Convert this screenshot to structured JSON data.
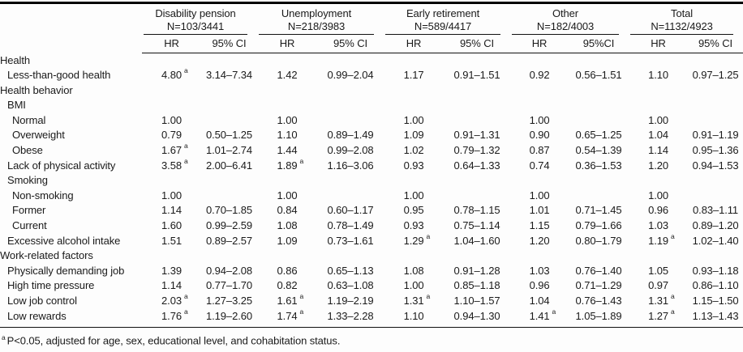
{
  "table": {
    "groups": [
      {
        "name": "Disability pension",
        "n": "N=103/3441",
        "hr": "HR",
        "ci": "95% CI"
      },
      {
        "name": "Unemployment",
        "n": "N=218/3983",
        "hr": "HR",
        "ci": "95% CI"
      },
      {
        "name": "Early retirement",
        "n": "N=589/4417",
        "hr": "HR",
        "ci": "95% CI"
      },
      {
        "name": "Other",
        "n": "N=182/4003",
        "hr": "HR",
        "ci": "95%CI"
      },
      {
        "name": "Total",
        "n": "N=1132/4923",
        "hr": "HR",
        "ci": "95% CI"
      }
    ],
    "rows": [
      {
        "label": "Health",
        "indent": 0,
        "cells": null
      },
      {
        "label": "Less-than-good health",
        "indent": 1,
        "cells": [
          {
            "hr": "4.80",
            "sup": "a",
            "ci": "3.14–7.34"
          },
          {
            "hr": "1.42",
            "ci": "0.99–2.04"
          },
          {
            "hr": "1.17",
            "ci": "0.91–1.51"
          },
          {
            "hr": "0.92",
            "ci": "0.56–1.51"
          },
          {
            "hr": "1.10",
            "ci": "0.97–1.25"
          }
        ]
      },
      {
        "label": "Health behavior",
        "indent": 0,
        "cells": null
      },
      {
        "label": "BMI",
        "indent": 1,
        "cells": null
      },
      {
        "label": "Normal",
        "indent": 2,
        "cells": [
          {
            "hr": "1.00",
            "ci": ""
          },
          {
            "hr": "1.00",
            "ci": ""
          },
          {
            "hr": "1.00",
            "ci": ""
          },
          {
            "hr": "1.00",
            "ci": ""
          },
          {
            "hr": "1.00",
            "ci": ""
          }
        ]
      },
      {
        "label": "Overweight",
        "indent": 2,
        "cells": [
          {
            "hr": "0.79",
            "ci": "0.50–1.25"
          },
          {
            "hr": "1.10",
            "ci": "0.89–1.49"
          },
          {
            "hr": "1.09",
            "ci": "0.91–1.31"
          },
          {
            "hr": "0.90",
            "ci": "0.65–1.25"
          },
          {
            "hr": "1.04",
            "ci": "0.91–1.19"
          }
        ]
      },
      {
        "label": "Obese",
        "indent": 2,
        "cells": [
          {
            "hr": "1.67",
            "sup": "a",
            "ci": "1.01–2.74"
          },
          {
            "hr": "1.44",
            "ci": "0.99–2.08"
          },
          {
            "hr": "1.02",
            "ci": "0.79–1.32"
          },
          {
            "hr": "0.87",
            "ci": "0.54–1.39"
          },
          {
            "hr": "1.14",
            "ci": "0.95–1.36"
          }
        ]
      },
      {
        "label": "Lack of physical activity",
        "indent": 1,
        "cells": [
          {
            "hr": "3.58",
            "sup": "a",
            "ci": "2.00–6.41"
          },
          {
            "hr": "1.89",
            "sup": "a",
            "ci": "1.16–3.06"
          },
          {
            "hr": "0.93",
            "ci": "0.64–1.33"
          },
          {
            "hr": "0.74",
            "ci": "0.36–1.53"
          },
          {
            "hr": "1.20",
            "ci": "0.94–1.53"
          }
        ]
      },
      {
        "label": "Smoking",
        "indent": 1,
        "cells": null
      },
      {
        "label": "Non-smoking",
        "indent": 2,
        "cells": [
          {
            "hr": "1.00",
            "ci": ""
          },
          {
            "hr": "1.00",
            "ci": ""
          },
          {
            "hr": "1.00",
            "ci": ""
          },
          {
            "hr": "1.00",
            "ci": ""
          },
          {
            "hr": "1.00",
            "ci": ""
          }
        ]
      },
      {
        "label": "Former",
        "indent": 2,
        "cells": [
          {
            "hr": "1.14",
            "ci": "0.70–1.85"
          },
          {
            "hr": "0.84",
            "ci": "0.60–1.17"
          },
          {
            "hr": "0.95",
            "ci": "0.78–1.15"
          },
          {
            "hr": "1.01",
            "ci": "0.71–1.45"
          },
          {
            "hr": "0.96",
            "ci": "0.83–1.11"
          }
        ]
      },
      {
        "label": "Current",
        "indent": 2,
        "cells": [
          {
            "hr": "1.60",
            "ci": "0.99–2.59"
          },
          {
            "hr": "1.08",
            "ci": "0.78–1.49"
          },
          {
            "hr": "0.93",
            "ci": "0.75–1.14"
          },
          {
            "hr": "1.15",
            "ci": "0.79–1.66"
          },
          {
            "hr": "1.03",
            "ci": "0.89–1.20"
          }
        ]
      },
      {
        "label": "Excessive alcohol intake",
        "indent": 1,
        "cells": [
          {
            "hr": "1.51",
            "ci": "0.89–2.57"
          },
          {
            "hr": "1.09",
            "ci": "0.73–1.61"
          },
          {
            "hr": "1.29",
            "sup": "a",
            "ci": "1.04–1.60"
          },
          {
            "hr": "1.20",
            "ci": "0.80–1.79"
          },
          {
            "hr": "1.19",
            "sup": "a",
            "ci": "1.02–1.40"
          }
        ]
      },
      {
        "label": "Work-related factors",
        "indent": 0,
        "cells": null
      },
      {
        "label": "Physically demanding job",
        "indent": 1,
        "cells": [
          {
            "hr": "1.39",
            "ci": "0.94–2.08"
          },
          {
            "hr": "0.86",
            "ci": "0.65–1.13"
          },
          {
            "hr": "1.08",
            "ci": "0.91–1.28"
          },
          {
            "hr": "1.03",
            "ci": "0.76–1.40"
          },
          {
            "hr": "1.05",
            "ci": "0.93–1.18"
          }
        ]
      },
      {
        "label": "High time pressure",
        "indent": 1,
        "cells": [
          {
            "hr": "1.14",
            "ci": "0.77–1.70"
          },
          {
            "hr": "0.82",
            "ci": "0.63–1.08"
          },
          {
            "hr": "1.00",
            "ci": "0.85–1.18"
          },
          {
            "hr": "0.96",
            "ci": "0.71–1.29"
          },
          {
            "hr": "0.97",
            "ci": "0.86–1.10"
          }
        ]
      },
      {
        "label": "Low job control",
        "indent": 1,
        "cells": [
          {
            "hr": "2.03",
            "sup": "a",
            "ci": "1.27–3.25"
          },
          {
            "hr": "1.61",
            "sup": "a",
            "ci": "1.19–2.19"
          },
          {
            "hr": "1.31",
            "sup": "a",
            "ci": "1.10–1.57"
          },
          {
            "hr": "1.04",
            "ci": "0.76–1.43"
          },
          {
            "hr": "1.31",
            "sup": "a",
            "ci": "1.15–1.50"
          }
        ]
      },
      {
        "label": "Low rewards",
        "indent": 1,
        "cells": [
          {
            "hr": "1.76",
            "sup": "a",
            "ci": "1.19–2.60"
          },
          {
            "hr": "1.74",
            "sup": "a",
            "ci": "1.33–2.28"
          },
          {
            "hr": "1.10",
            "ci": "0.94–1.30"
          },
          {
            "hr": "1.41",
            "sup": "a",
            "ci": "1.05–1.89"
          },
          {
            "hr": "1.27",
            "sup": "a",
            "ci": "1.13–1.43"
          }
        ]
      }
    ],
    "footnote": {
      "marker": "a",
      "text": "P<0.05, adjusted for age, sex, educational level, and cohabitation status."
    }
  }
}
